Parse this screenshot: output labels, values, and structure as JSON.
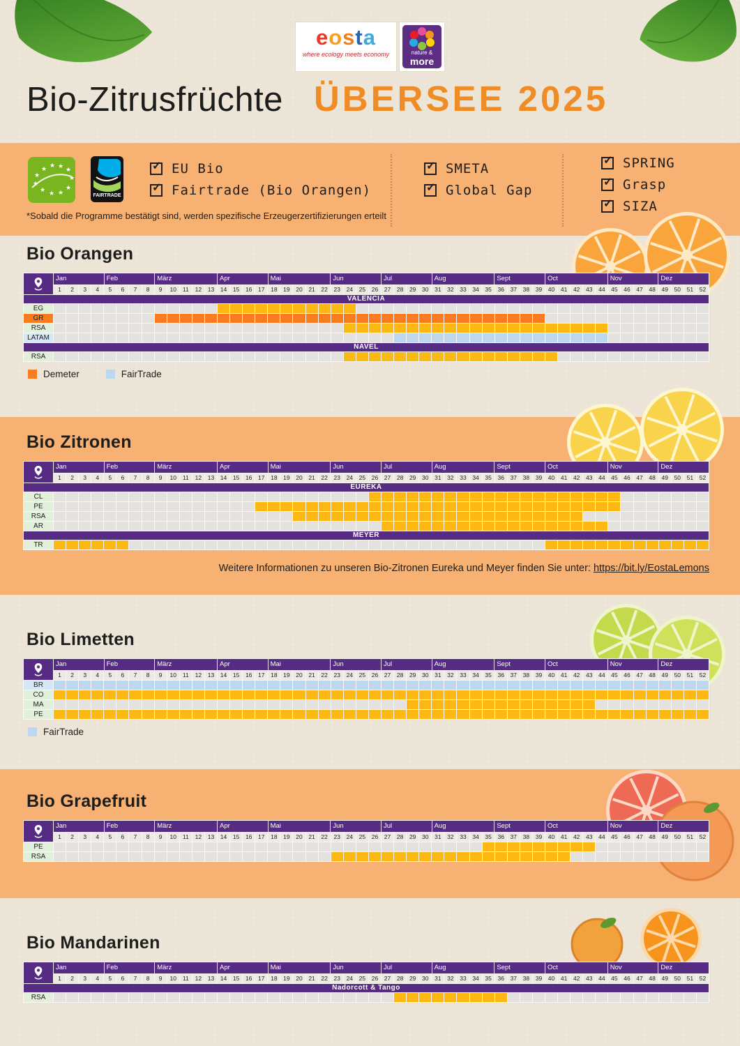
{
  "header": {
    "logo_eosta": {
      "letters": [
        {
          "ch": "e",
          "color": "#e8382d"
        },
        {
          "ch": "o",
          "color": "#f5a01e"
        },
        {
          "ch": "s",
          "color": "#ef7f1a"
        },
        {
          "ch": "t",
          "color": "#2b63ad"
        },
        {
          "ch": "a",
          "color": "#3fa9dc"
        }
      ],
      "tagline": "where ecology meets economy"
    },
    "logo_nature_more": {
      "line1": "nature &",
      "line2": "more"
    },
    "title_black": "Bio-Zitrusfrüchte",
    "title_orange": "ÜBERSEE 2025"
  },
  "certifications": {
    "fairtrade_label": "FAIRTRADE",
    "columns": [
      {
        "items": [
          "EU Bio",
          "Fairtrade (Bio Orangen)"
        ]
      },
      {
        "items": [
          "SMETA",
          "Global Gap"
        ]
      },
      {
        "items": [
          "SPRING",
          "Grasp",
          "SIZA"
        ]
      }
    ],
    "note": "*Sobald die Programme bestätigt sind, werden spezifische Erzeugerzertifizierungen erteilt"
  },
  "months": {
    "labels": [
      "Jan",
      "Feb",
      "März",
      "Apr",
      "Mai",
      "Jun",
      "Jul",
      "Aug",
      "Sept",
      "Oct",
      "Nov",
      "Dez"
    ],
    "weeks_per_month": [
      4,
      4,
      5,
      4,
      5,
      4,
      4,
      5,
      4,
      5,
      4,
      4
    ],
    "weeks_total": 52
  },
  "colors": {
    "purple": "#562b83",
    "yellow": "#fdb813",
    "demeter": "#f97d20",
    "fairtrade": "#bdd7ee",
    "section_orange": "#f6b173",
    "paper": "#ece5d8",
    "title_orange": "#ef8c25",
    "label_green": "#e2efda",
    "label_blue": "#d6e7f6",
    "cell_empty": "#e4e2df"
  },
  "chart_data": [
    {
      "type": "gantt",
      "title": "Bio Orangen",
      "x_unit": "calendar week",
      "x_range": [
        1,
        52
      ],
      "legend": [
        {
          "label": "Demeter",
          "style": "demeter"
        },
        {
          "label": "FairTrade",
          "style": "fairtrade"
        }
      ],
      "groups": [
        {
          "variety": "VALENCIA",
          "rows": [
            {
              "origin": "EG",
              "style": "standard",
              "ranges": [
                [
                  14,
                  24
                ]
              ]
            },
            {
              "origin": "GR",
              "style": "demeter",
              "ranges": [
                [
                  9,
                  39
                ]
              ]
            },
            {
              "origin": "RSA",
              "style": "standard",
              "ranges": [
                [
                  24,
                  44
                ]
              ]
            },
            {
              "origin": "LATAM",
              "style": "fairtrade",
              "ranges": [
                [
                  28,
                  44
                ]
              ]
            }
          ]
        },
        {
          "variety": "NAVEL",
          "rows": [
            {
              "origin": "RSA",
              "style": "standard",
              "ranges": [
                [
                  24,
                  40
                ]
              ]
            }
          ]
        }
      ]
    },
    {
      "type": "gantt",
      "title": "Bio Zitronen",
      "x_unit": "calendar week",
      "x_range": [
        1,
        52
      ],
      "legend": [],
      "groups": [
        {
          "variety": "EUREKA",
          "rows": [
            {
              "origin": "CL",
              "style": "standard",
              "ranges": [
                [
                  26,
                  45
                ]
              ]
            },
            {
              "origin": "PE",
              "style": "standard",
              "ranges": [
                [
                  17,
                  45
                ]
              ]
            },
            {
              "origin": "RSA",
              "style": "standard",
              "ranges": [
                [
                  20,
                  42
                ]
              ]
            },
            {
              "origin": "AR",
              "style": "standard",
              "ranges": [
                [
                  27,
                  44
                ]
              ]
            }
          ]
        },
        {
          "variety": "MEYER",
          "rows": [
            {
              "origin": "TR",
              "style": "standard",
              "ranges": [
                [
                  1,
                  6
                ],
                [
                  40,
                  52
                ]
              ]
            }
          ]
        }
      ],
      "note": {
        "text": "Weitere Informationen zu unseren Bio-Zitronen Eureka und Meyer finden Sie unter:",
        "link": "https://bit.ly/EostaLemons"
      }
    },
    {
      "type": "gantt",
      "title": "Bio Limetten",
      "x_unit": "calendar week",
      "x_range": [
        1,
        52
      ],
      "legend": [
        {
          "label": "FairTrade",
          "style": "fairtrade"
        }
      ],
      "groups": [
        {
          "variety": null,
          "rows": [
            {
              "origin": "BR",
              "style": "fairtrade",
              "ranges": [
                [
                  1,
                  52
                ]
              ]
            },
            {
              "origin": "CO",
              "style": "standard",
              "ranges": [
                [
                  1,
                  52
                ]
              ]
            },
            {
              "origin": "MA",
              "style": "standard",
              "ranges": [
                [
                  29,
                  43
                ]
              ]
            },
            {
              "origin": "PE",
              "style": "standard",
              "ranges": [
                [
                  1,
                  52
                ]
              ]
            }
          ]
        }
      ]
    },
    {
      "type": "gantt",
      "title": "Bio Grapefruit",
      "x_unit": "calendar week",
      "x_range": [
        1,
        52
      ],
      "legend": [],
      "groups": [
        {
          "variety": null,
          "rows": [
            {
              "origin": "PE",
              "style": "standard",
              "ranges": [
                [
                  35,
                  43
                ]
              ]
            },
            {
              "origin": "RSA",
              "style": "standard",
              "ranges": [
                [
                  23,
                  41
                ]
              ]
            }
          ]
        }
      ]
    },
    {
      "type": "gantt",
      "title": "Bio Mandarinen",
      "x_unit": "calendar week",
      "x_range": [
        1,
        52
      ],
      "legend": [],
      "groups": [
        {
          "variety": "Nadorcott & Tango",
          "rows": [
            {
              "origin": "RSA",
              "style": "standard",
              "ranges": [
                [
                  28,
                  36
                ]
              ]
            }
          ]
        }
      ]
    }
  ]
}
